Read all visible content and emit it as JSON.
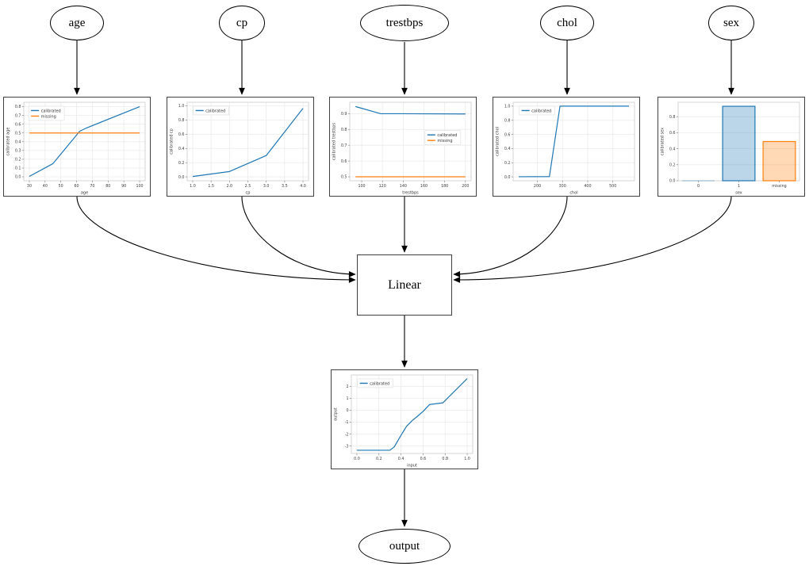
{
  "diagram": {
    "nodes": {
      "age": {
        "label": "age"
      },
      "cp": {
        "label": "cp"
      },
      "trestbps": {
        "label": "trestbps"
      },
      "chol": {
        "label": "chol"
      },
      "sex": {
        "label": "sex"
      },
      "linear": {
        "label": "Linear"
      },
      "output": {
        "label": "output"
      }
    }
  },
  "colors": {
    "calibrated": "#1f77b4",
    "missing": "#ff7f0e",
    "edge": "#000000",
    "grid": "#ebebeb",
    "spine": "#d0d0d0",
    "tick_text": "#3b3b3b"
  },
  "chart_data": [
    {
      "name": "age-calibration",
      "type": "line",
      "xlabel": "age",
      "ylabel": "calibrated age",
      "xlim": [
        26.5,
        103.5
      ],
      "ylim": [
        -0.045,
        0.85
      ],
      "grid": true,
      "xticks": {
        "values": [
          30,
          40,
          50,
          60,
          70,
          80,
          90,
          100
        ],
        "labels": [
          "30",
          "40",
          "50",
          "60",
          "70",
          "80",
          "90",
          "100"
        ]
      },
      "yticks": {
        "values": [
          0.0,
          0.1,
          0.2,
          0.3,
          0.4,
          0.5,
          0.6,
          0.7,
          0.8
        ],
        "labels": [
          "0.0",
          "0.1",
          "0.2",
          "0.3",
          "0.4",
          "0.5",
          "0.6",
          "0.7",
          "0.8"
        ]
      },
      "legend": {
        "x": 0.04,
        "y": 0.05,
        "position": "upper-left",
        "entries": [
          "calibrated",
          "missing"
        ]
      },
      "series": [
        {
          "name": "calibrated",
          "color": "#1f77b4",
          "points": [
            [
              30,
              0.005
            ],
            [
              45,
              0.15
            ],
            [
              62,
              0.52
            ],
            [
              66,
              0.555
            ],
            [
              100,
              0.8
            ]
          ]
        },
        {
          "name": "missing",
          "color": "#ff7f0e",
          "points": [
            [
              30,
              0.5
            ],
            [
              100,
              0.5
            ]
          ]
        }
      ]
    },
    {
      "name": "cp-calibration",
      "type": "line",
      "xlabel": "cp",
      "ylabel": "calibrated cp",
      "xlim": [
        0.85,
        4.15
      ],
      "ylim": [
        -0.055,
        1.05
      ],
      "grid": true,
      "xticks": {
        "values": [
          1.0,
          1.5,
          2.0,
          2.5,
          3.0,
          3.5,
          4.0
        ],
        "labels": [
          "1.0",
          "1.5",
          "2.0",
          "2.5",
          "3.0",
          "3.5",
          "4.0"
        ]
      },
      "yticks": {
        "values": [
          0.0,
          0.2,
          0.4,
          0.6,
          0.8,
          1.0
        ],
        "labels": [
          "0.0",
          "0.2",
          "0.4",
          "0.6",
          "0.8",
          "1.0"
        ]
      },
      "legend": {
        "x": 0.05,
        "y": 0.05,
        "position": "upper-left",
        "entries": [
          "calibrated"
        ]
      },
      "series": [
        {
          "name": "calibrated",
          "color": "#1f77b4",
          "points": [
            [
              1.0,
              0.005
            ],
            [
              2.0,
              0.075
            ],
            [
              3.0,
              0.3
            ],
            [
              4.0,
              0.965
            ]
          ]
        }
      ]
    },
    {
      "name": "trestbps-calibration",
      "type": "line",
      "xlabel": "trestbps",
      "ylabel": "calibrated trestbps",
      "xlim": [
        88.5,
        205.5
      ],
      "ylim": [
        0.475,
        0.972
      ],
      "grid": true,
      "xticks": {
        "values": [
          100,
          120,
          140,
          160,
          180,
          200
        ],
        "labels": [
          "100",
          "120",
          "140",
          "160",
          "180",
          "200"
        ]
      },
      "yticks": {
        "values": [
          0.5,
          0.6,
          0.7,
          0.8,
          0.9
        ],
        "labels": [
          "0.5",
          "0.6",
          "0.7",
          "0.8",
          "0.9"
        ]
      },
      "legend": {
        "x": 0.62,
        "y": 0.36,
        "position": "center-right",
        "entries": [
          "calibrated",
          "missing"
        ]
      },
      "series": [
        {
          "name": "calibrated",
          "color": "#1f77b4",
          "points": [
            [
              94,
              0.945
            ],
            [
              118,
              0.9
            ],
            [
              200,
              0.898
            ]
          ]
        },
        {
          "name": "missing",
          "color": "#ff7f0e",
          "points": [
            [
              94,
              0.5
            ],
            [
              200,
              0.5
            ]
          ]
        }
      ]
    },
    {
      "name": "chol-calibration",
      "type": "line",
      "xlabel": "chol",
      "ylabel": "calibrated chol",
      "xlim": [
        104,
        586
      ],
      "ylim": [
        -0.055,
        1.055
      ],
      "grid": true,
      "xticks": {
        "values": [
          200,
          300,
          400,
          500
        ],
        "labels": [
          "200",
          "300",
          "400",
          "500"
        ]
      },
      "yticks": {
        "values": [
          0.0,
          0.2,
          0.4,
          0.6,
          0.8,
          1.0
        ],
        "labels": [
          "0.0",
          "0.2",
          "0.4",
          "0.6",
          "0.8",
          "1.0"
        ]
      },
      "legend": {
        "x": 0.05,
        "y": 0.05,
        "position": "upper-left",
        "entries": [
          "calibrated"
        ]
      },
      "series": [
        {
          "name": "calibrated",
          "color": "#1f77b4",
          "points": [
            [
              126,
              0.002
            ],
            [
              248,
              0.004
            ],
            [
              290,
              1.0
            ],
            [
              564,
              1.0
            ]
          ]
        }
      ]
    },
    {
      "name": "sex-calibration",
      "type": "bar",
      "xlabel": "sex",
      "ylabel": "calibrated sex",
      "categories": [
        "0",
        "1",
        "missing"
      ],
      "values": [
        0.0,
        0.93,
        0.49
      ],
      "bar_colors": [
        "#1f77b4",
        "#1f77b4",
        "#ff7f0e"
      ],
      "ylim": [
        0,
        0.98
      ],
      "grid": true,
      "yticks": {
        "values": [
          0.0,
          0.2,
          0.4,
          0.6,
          0.8
        ],
        "labels": [
          "0.0",
          "0.2",
          "0.4",
          "0.6",
          "0.8"
        ]
      }
    },
    {
      "name": "output-calibration",
      "type": "line",
      "xlabel": "input",
      "ylabel": "output",
      "xlim": [
        -0.05,
        1.05
      ],
      "ylim": [
        -3.62,
        2.95
      ],
      "grid": true,
      "xticks": {
        "values": [
          0.0,
          0.2,
          0.4,
          0.6,
          0.8,
          1.0
        ],
        "labels": [
          "0.0",
          "0.2",
          "0.4",
          "0.6",
          "0.8",
          "1.0"
        ]
      },
      "yticks": {
        "values": [
          -3,
          -2,
          -1,
          0,
          1,
          2
        ],
        "labels": [
          "-3",
          "-2",
          "-1",
          "0",
          "1",
          "2"
        ]
      },
      "legend": {
        "x": 0.05,
        "y": 0.05,
        "position": "upper-left",
        "entries": [
          "calibrated"
        ]
      },
      "series": [
        {
          "name": "calibrated",
          "color": "#1f77b4",
          "points": [
            [
              0.0,
              -3.35
            ],
            [
              0.3,
              -3.35
            ],
            [
              0.34,
              -3.05
            ],
            [
              0.4,
              -2.1
            ],
            [
              0.45,
              -1.35
            ],
            [
              0.5,
              -0.88
            ],
            [
              0.55,
              -0.5
            ],
            [
              0.6,
              -0.1
            ],
            [
              0.66,
              0.48
            ],
            [
              0.78,
              0.62
            ],
            [
              1.0,
              2.65
            ]
          ]
        }
      ]
    }
  ]
}
